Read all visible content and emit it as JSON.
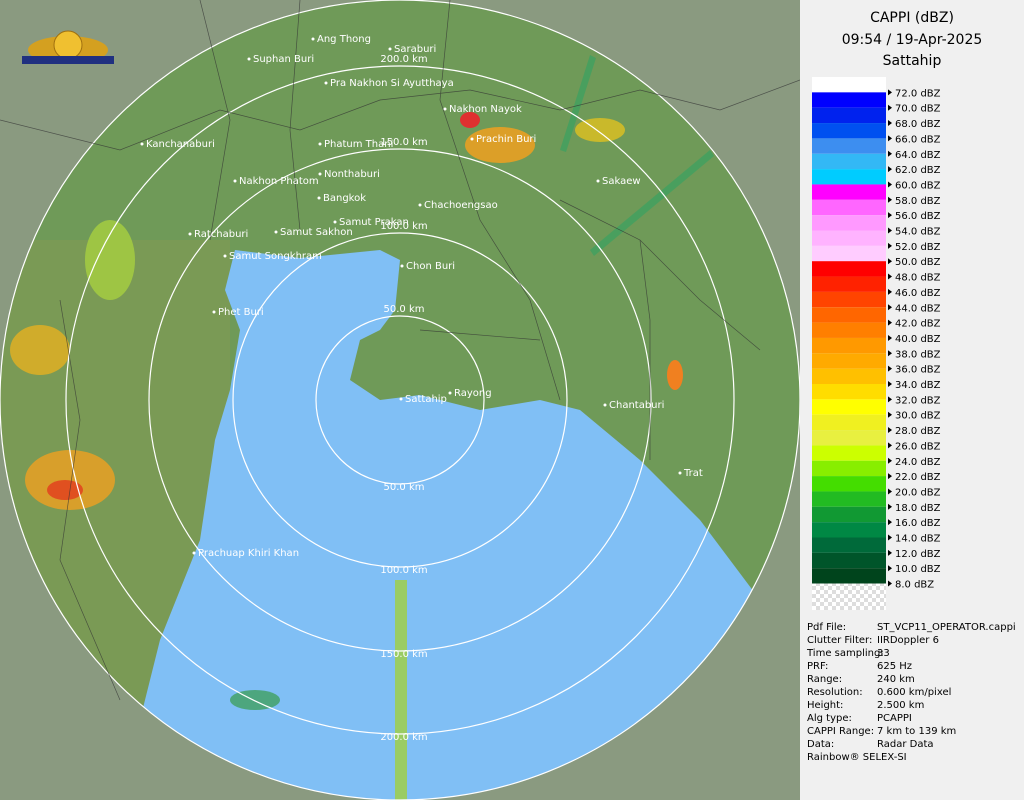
{
  "header": {
    "title": "CAPPI (dBZ)",
    "time": "09:54 / 19-Apr-2025",
    "site": "Sattahip"
  },
  "legend": [
    {
      "label": "72.0 dBZ",
      "color": "#ffffff"
    },
    {
      "label": "70.0 dBZ",
      "color": "#0000ff"
    },
    {
      "label": "68.0 dBZ",
      "color": "#0022ee"
    },
    {
      "label": "66.0 dBZ",
      "color": "#0050f0"
    },
    {
      "label": "64.0 dBZ",
      "color": "#3d8ef0"
    },
    {
      "label": "62.0 dBZ",
      "color": "#33b8f5"
    },
    {
      "label": "60.0 dBZ",
      "color": "#00ccff"
    },
    {
      "label": "58.0 dBZ",
      "color": "#ff00ff"
    },
    {
      "label": "56.0 dBZ",
      "color": "#ff66ff"
    },
    {
      "label": "54.0 dBZ",
      "color": "#ff99ff"
    },
    {
      "label": "52.0 dBZ",
      "color": "#ffb3ff"
    },
    {
      "label": "50.0 dBZ",
      "color": "#ffccff"
    },
    {
      "label": "48.0 dBZ",
      "color": "#ff0000"
    },
    {
      "label": "46.0 dBZ",
      "color": "#ff2200"
    },
    {
      "label": "44.0 dBZ",
      "color": "#ff4400"
    },
    {
      "label": "42.0 dBZ",
      "color": "#ff6600"
    },
    {
      "label": "40.0 dBZ",
      "color": "#ff7f00"
    },
    {
      "label": "38.0 dBZ",
      "color": "#ff9900"
    },
    {
      "label": "36.0 dBZ",
      "color": "#ffaa00"
    },
    {
      "label": "34.0 dBZ",
      "color": "#ffc000"
    },
    {
      "label": "32.0 dBZ",
      "color": "#ffdd00"
    },
    {
      "label": "30.0 dBZ",
      "color": "#ffff00"
    },
    {
      "label": "28.0 dBZ",
      "color": "#f0f020"
    },
    {
      "label": "26.0 dBZ",
      "color": "#e8f040"
    },
    {
      "label": "24.0 dBZ",
      "color": "#ccff00"
    },
    {
      "label": "22.0 dBZ",
      "color": "#88ee00"
    },
    {
      "label": "20.0 dBZ",
      "color": "#44dd00"
    },
    {
      "label": "18.0 dBZ",
      "color": "#22bb22"
    },
    {
      "label": "16.0 dBZ",
      "color": "#119933"
    },
    {
      "label": "14.0 dBZ",
      "color": "#008844"
    },
    {
      "label": "12.0 dBZ",
      "color": "#006a3a"
    },
    {
      "label": "10.0 dBZ",
      "color": "#00552a"
    },
    {
      "label": "8.0 dBZ",
      "color": "#00441c"
    }
  ],
  "info": [
    {
      "key": "Pdf File:",
      "value": "ST_VCP11_OPERATOR.cappi"
    },
    {
      "key": "Clutter Filter:",
      "value": "IIRDoppler 6"
    },
    {
      "key": "Time sampling:",
      "value": "33"
    },
    {
      "key": "PRF:",
      "value": "625 Hz"
    },
    {
      "key": "Range:",
      "value": "240 km"
    },
    {
      "key": "Resolution:",
      "value": "0.600 km/pixel"
    },
    {
      "key": "Height:",
      "value": "2.500 km"
    },
    {
      "key": "Alg type:",
      "value": "PCAPPI"
    },
    {
      "key": "CAPPI Range:",
      "value": "7 km to 139 km"
    },
    {
      "key": "Data:",
      "value": "Radar Data"
    }
  ],
  "footer": "Rainbow® SELEX-SI",
  "map": {
    "rings": [
      "50.0 km",
      "100.0 km",
      "150.0 km",
      "200.0 km"
    ],
    "cities": [
      "Ang Thong",
      "Suphan Buri",
      "Saraburi",
      "Pra Nakhon Si Ayutthaya",
      "Nakhon Nayok",
      "Kanchanaburi",
      "Phatum Thani",
      "Prachin Buri",
      "Nonthaburi",
      "Nakhon Phatom",
      "Sakaew",
      "Bangkok",
      "Chachoengsao",
      "Samut Prakan",
      "Ratchaburi",
      "Samut Sakhon",
      "Samut Songkhram",
      "Chon Buri",
      "Phet Buri",
      "Sattahip",
      "Rayong",
      "Chantaburi",
      "Trat",
      "Prachuap Khiri Khan"
    ]
  }
}
